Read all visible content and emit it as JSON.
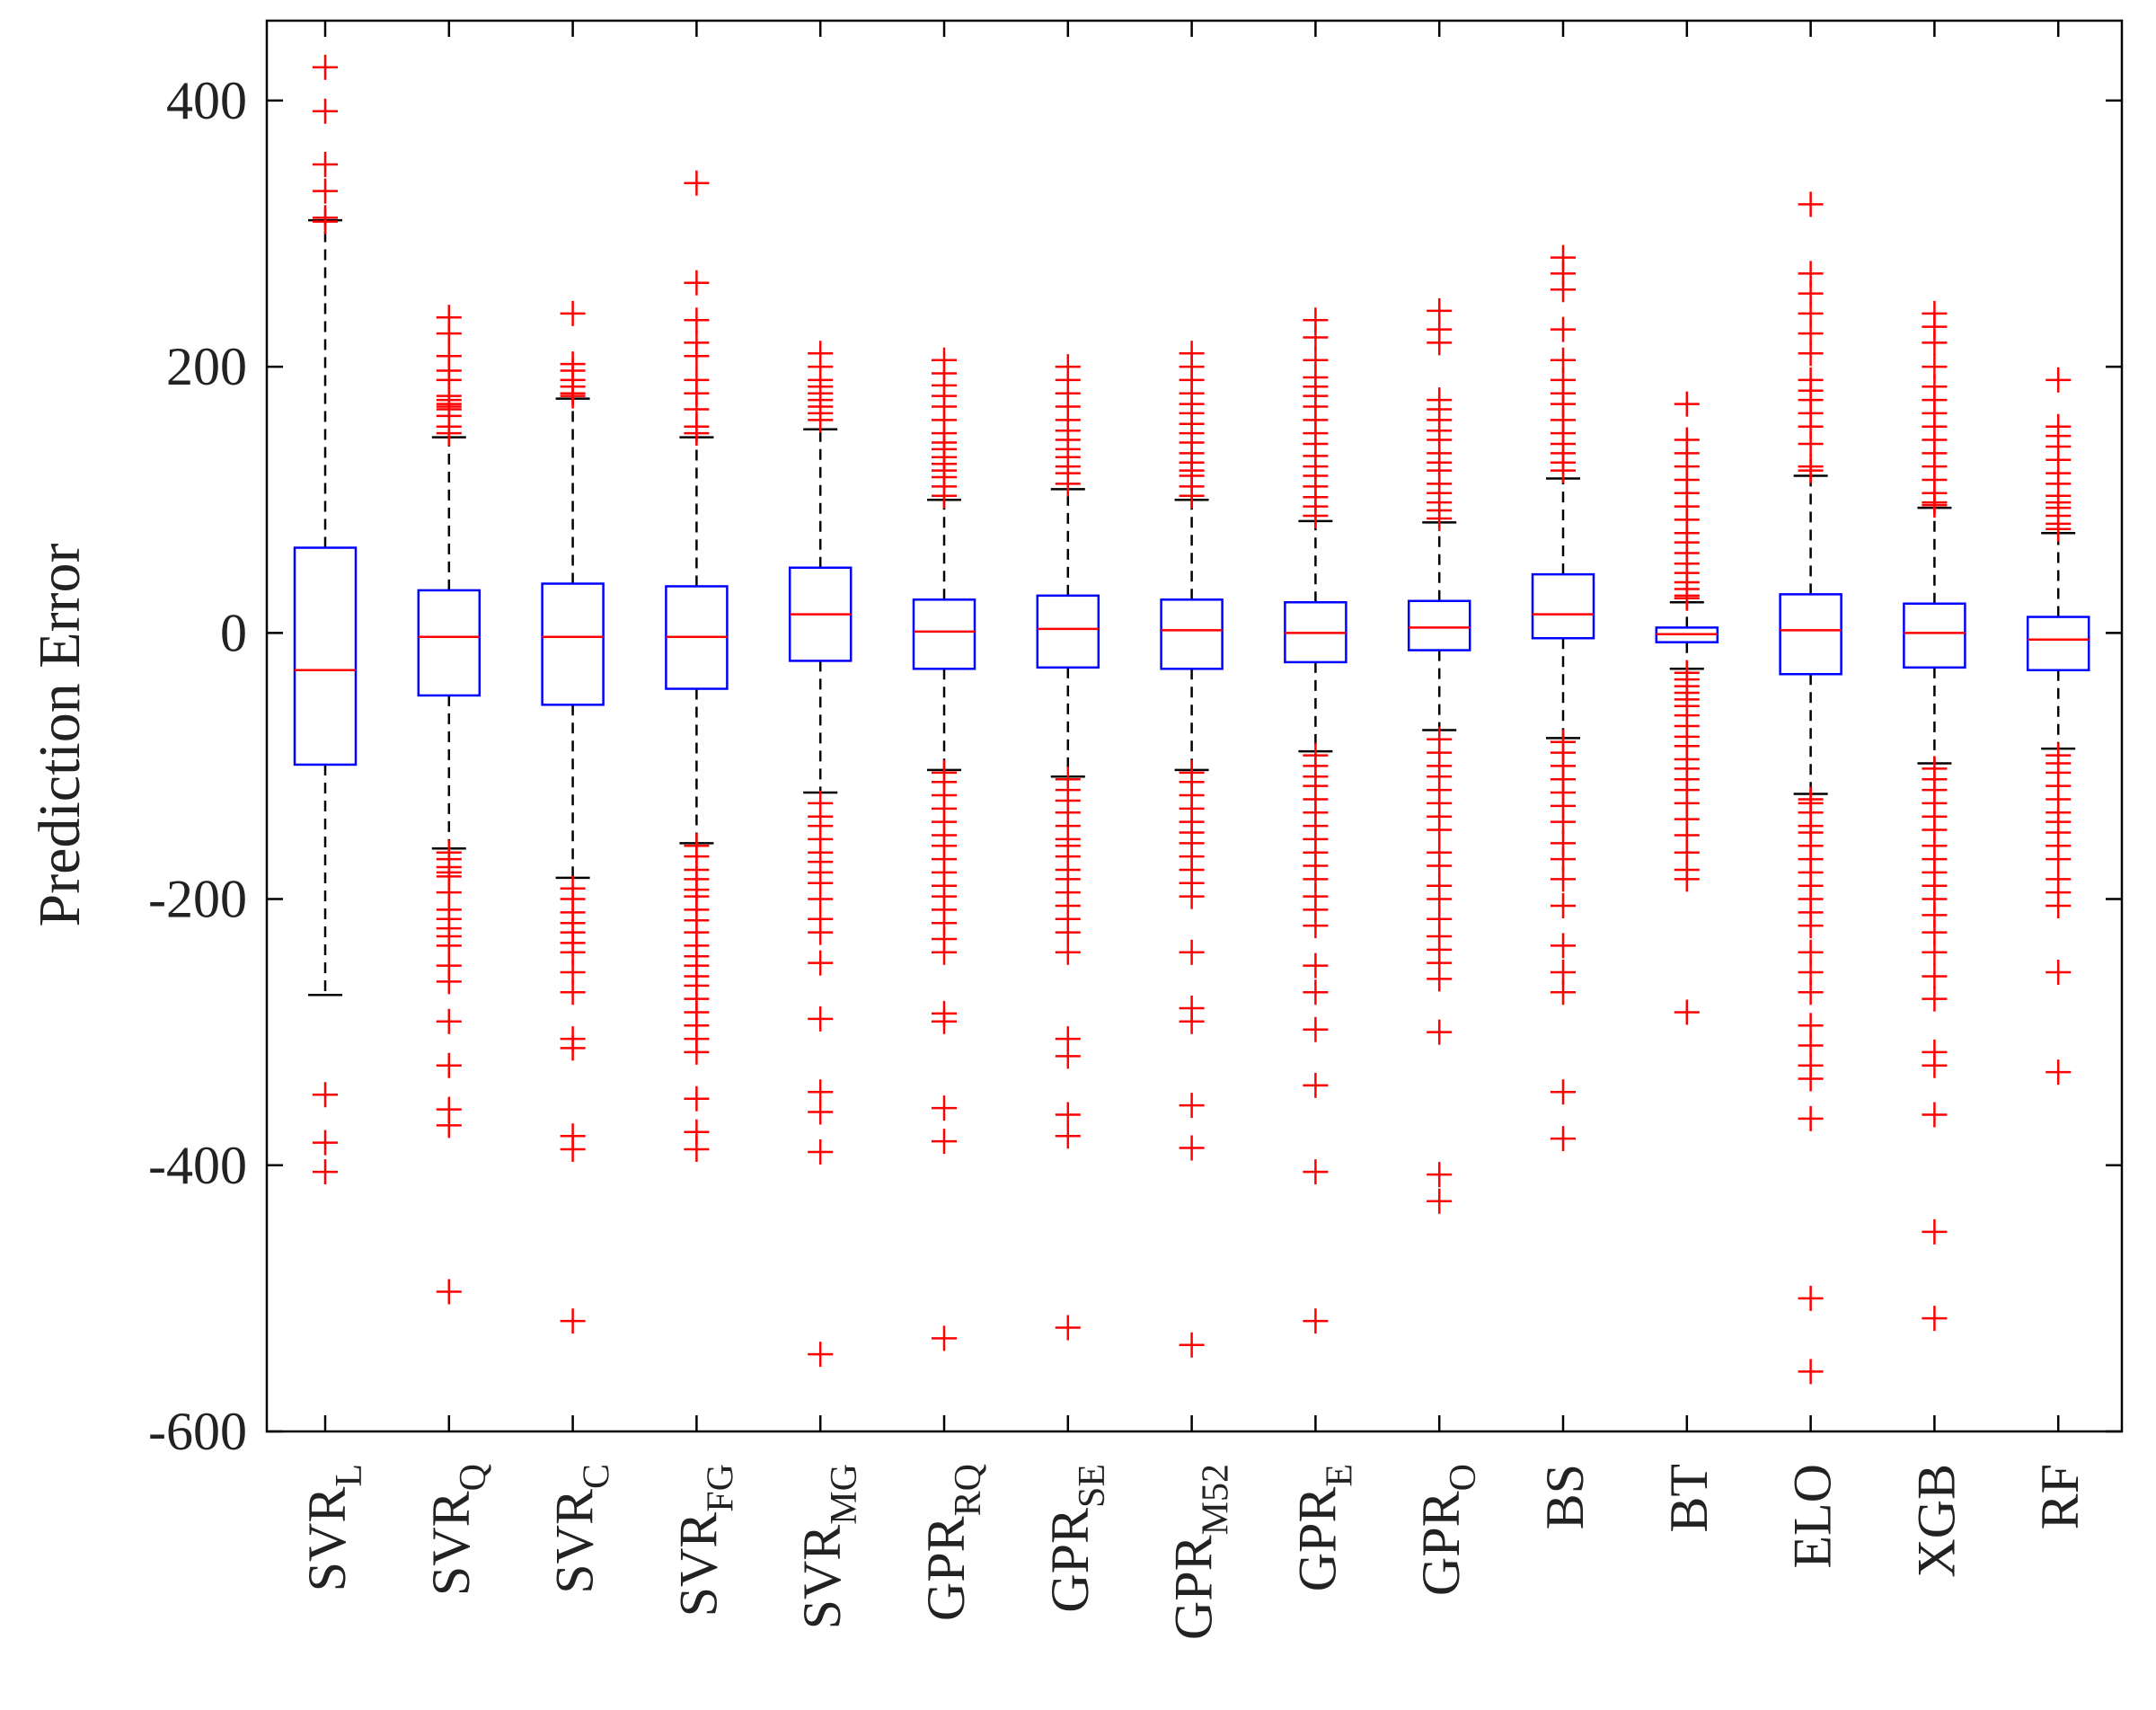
{
  "chart_data": {
    "type": "boxplot",
    "title": "",
    "xlabel": "",
    "ylabel": "Prediction Error",
    "ylim": [
      -600,
      460
    ],
    "yticks": [
      -600,
      -400,
      -200,
      0,
      200,
      400
    ],
    "colors": {
      "box": "#0000ff",
      "median": "#ff0000",
      "outlier": "#ff0000",
      "whisker": "#000000",
      "axis": "#000000"
    },
    "categories": [
      {
        "base": "SVR",
        "sub": "L"
      },
      {
        "base": "SVR",
        "sub": "Q"
      },
      {
        "base": "SVR",
        "sub": "C"
      },
      {
        "base": "SVR",
        "sub": "FG"
      },
      {
        "base": "SVR",
        "sub": "MG"
      },
      {
        "base": "GPR",
        "sub": "RQ"
      },
      {
        "base": "GPR",
        "sub": "SE"
      },
      {
        "base": "GPR",
        "sub": "M52"
      },
      {
        "base": "GPR",
        "sub": "E"
      },
      {
        "base": "GPR",
        "sub": "O"
      },
      {
        "base": "BS",
        "sub": ""
      },
      {
        "base": "BT",
        "sub": ""
      },
      {
        "base": "ELO",
        "sub": ""
      },
      {
        "base": "XGB",
        "sub": ""
      },
      {
        "base": "RF",
        "sub": ""
      }
    ],
    "boxes": [
      {
        "whisker_low": -272,
        "q1": -99,
        "median": -28,
        "q3": 64,
        "whisker_high": 310,
        "outliers": [
          425,
          392,
          352,
          332,
          312,
          309,
          -347,
          -383,
          -405
        ]
      },
      {
        "whisker_low": -162,
        "q1": -47,
        "median": -3,
        "q3": 32,
        "whisker_high": 147,
        "outliers": [
          237,
          225,
          208,
          197,
          190,
          178,
          175,
          172,
          170,
          168,
          163,
          155,
          150,
          -165,
          -170,
          -176,
          -180,
          -183,
          -195,
          -208,
          -215,
          -222,
          -228,
          -235,
          -250,
          -262,
          -292,
          -325,
          -358,
          -370,
          -495
        ]
      },
      {
        "whisker_low": -184,
        "q1": -54,
        "median": -3,
        "q3": 37,
        "whisker_high": 176,
        "outliers": [
          240,
          202,
          197,
          190,
          185,
          180,
          178,
          -192,
          -200,
          -210,
          -218,
          -225,
          -233,
          -240,
          -255,
          -270,
          -305,
          -312,
          -378,
          -388,
          -517
        ]
      },
      {
        "whisker_low": -158,
        "q1": -42,
        "median": -3,
        "q3": 35,
        "whisker_high": 147,
        "outliers": [
          338,
          263,
          235,
          218,
          208,
          190,
          180,
          168,
          155,
          150,
          -160,
          -168,
          -178,
          -185,
          -193,
          -198,
          -208,
          -216,
          -225,
          -235,
          -243,
          -250,
          -258,
          -265,
          -275,
          -285,
          -295,
          -305,
          -315,
          -350,
          -375,
          -388
        ]
      },
      {
        "whisker_low": -120,
        "q1": -21,
        "median": 14,
        "q3": 49,
        "whisker_high": 153,
        "outliers": [
          210,
          200,
          190,
          185,
          180,
          175,
          170,
          165,
          160,
          -128,
          -138,
          -145,
          -155,
          -165,
          -172,
          -180,
          -188,
          -200,
          -215,
          -225,
          -248,
          -290,
          -345,
          -360,
          -390,
          -542
        ]
      },
      {
        "whisker_low": -103,
        "q1": -27,
        "median": 1,
        "q3": 25,
        "whisker_high": 100,
        "outliers": [
          205,
          195,
          186,
          178,
          170,
          160,
          150,
          143,
          138,
          132,
          127,
          122,
          117,
          110,
          103,
          -105,
          -112,
          -122,
          -132,
          -142,
          -152,
          -160,
          -170,
          -180,
          -190,
          -198,
          -208,
          -218,
          -230,
          -240,
          -286,
          -292,
          -357,
          -382,
          -530
        ]
      },
      {
        "whisker_low": -108,
        "q1": -26,
        "median": 3,
        "q3": 28,
        "whisker_high": 108,
        "outliers": [
          200,
          190,
          180,
          170,
          160,
          152,
          145,
          138,
          132,
          125,
          120,
          112,
          -110,
          -118,
          -126,
          -135,
          -145,
          -155,
          -160,
          -168,
          -178,
          -185,
          -195,
          -205,
          -215,
          -225,
          -240,
          -305,
          -318,
          -362,
          -378,
          -522
        ]
      },
      {
        "whisker_low": -103,
        "q1": -27,
        "median": 2,
        "q3": 25,
        "whisker_high": 100,
        "outliers": [
          210,
          200,
          190,
          180,
          172,
          165,
          157,
          150,
          143,
          135,
          128,
          122,
          118,
          110,
          103,
          -105,
          -112,
          -122,
          -132,
          -142,
          -150,
          -158,
          -168,
          -178,
          -188,
          -198,
          -240,
          -282,
          -292,
          -355,
          -387,
          -535
        ]
      },
      {
        "whisker_low": -89,
        "q1": -22,
        "median": 0,
        "q3": 23,
        "whisker_high": 84,
        "outliers": [
          235,
          222,
          205,
          192,
          185,
          178,
          170,
          160,
          150,
          142,
          133,
          125,
          118,
          110,
          102,
          95,
          88,
          -92,
          -100,
          -108,
          -115,
          -125,
          -135,
          -145,
          -155,
          -165,
          -175,
          -185,
          -198,
          -208,
          -220,
          -250,
          -270,
          -298,
          -340,
          -405,
          -517
        ]
      },
      {
        "whisker_low": -73,
        "q1": -13,
        "median": 4,
        "q3": 24,
        "whisker_high": 83,
        "outliers": [
          242,
          228,
          218,
          175,
          168,
          160,
          152,
          145,
          135,
          128,
          122,
          112,
          105,
          98,
          92,
          86,
          -80,
          -90,
          -100,
          -108,
          -118,
          -128,
          -138,
          -148,
          -165,
          -175,
          -190,
          -200,
          -215,
          -228,
          -238,
          -248,
          -260,
          -300,
          -407,
          -427
        ]
      },
      {
        "whisker_low": -79,
        "q1": -4,
        "median": 14,
        "q3": 44,
        "whisker_high": 116,
        "outliers": [
          282,
          270,
          258,
          228,
          205,
          190,
          180,
          172,
          160,
          150,
          142,
          135,
          128,
          122,
          -82,
          -90,
          -100,
          -110,
          -120,
          -130,
          -142,
          -158,
          -170,
          -185,
          -205,
          -235,
          -255,
          -270,
          -345,
          -380
        ]
      },
      {
        "whisker_low": -27,
        "q1": -7,
        "median": -1,
        "q3": 4,
        "whisker_high": 23,
        "outliers": [
          172,
          145,
          135,
          125,
          115,
          105,
          95,
          85,
          75,
          68,
          60,
          52,
          45,
          38,
          33,
          28,
          26,
          -30,
          -35,
          -40,
          -45,
          -50,
          -55,
          -62,
          -70,
          -78,
          -85,
          -95,
          -102,
          -110,
          -118,
          -128,
          -140,
          -152,
          -165,
          -178,
          -185,
          -285
        ]
      },
      {
        "whisker_low": -121,
        "q1": -31,
        "median": 2,
        "q3": 29,
        "whisker_high": 118,
        "outliers": [
          322,
          270,
          255,
          240,
          225,
          210,
          190,
          182,
          175,
          165,
          155,
          142,
          125,
          122,
          -125,
          -128,
          -135,
          -145,
          -150,
          -160,
          -170,
          -180,
          -190,
          -200,
          -210,
          -220,
          -240,
          -255,
          -270,
          -295,
          -310,
          -325,
          -335,
          -365,
          -500,
          -555
        ]
      },
      {
        "whisker_low": -98,
        "q1": -26,
        "median": 0,
        "q3": 22,
        "whisker_high": 94,
        "outliers": [
          240,
          230,
          218,
          200,
          185,
          175,
          165,
          155,
          145,
          135,
          125,
          115,
          105,
          98,
          96,
          -102,
          -110,
          -118,
          -128,
          -138,
          -148,
          -160,
          -170,
          -180,
          -190,
          -200,
          -212,
          -225,
          -240,
          -258,
          -275,
          -315,
          -325,
          -362,
          -450,
          -515
        ]
      },
      {
        "whisker_low": -87,
        "q1": -28,
        "median": -5,
        "q3": 12,
        "whisker_high": 75,
        "outliers": [
          190,
          155,
          148,
          140,
          130,
          120,
          112,
          103,
          98,
          94,
          88,
          82,
          78,
          -92,
          -98,
          -105,
          -115,
          -125,
          -135,
          -142,
          -150,
          -160,
          -170,
          -185,
          -195,
          -205,
          -255,
          -330
        ]
      }
    ]
  }
}
